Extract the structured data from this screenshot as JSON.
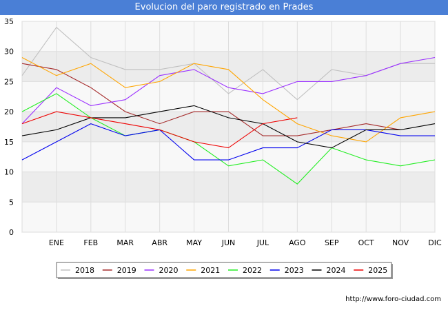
{
  "page": {
    "title": "Evolucion del paro registrado en Prades",
    "source": "http://www.foro-ciudad.com"
  },
  "chart_data": {
    "type": "line",
    "title": "Evolucion del paro registrado en Prades",
    "xlabel": "",
    "ylabel": "",
    "categories": [
      "",
      "ENE",
      "FEB",
      "MAR",
      "ABR",
      "MAY",
      "JUN",
      "JUL",
      "AGO",
      "SEP",
      "OCT",
      "NOV",
      "DIC"
    ],
    "yticks": [
      0,
      5,
      10,
      15,
      20,
      25,
      30,
      35
    ],
    "ylim": [
      0,
      35
    ],
    "grid": true,
    "legend_position": "bottom",
    "series": [
      {
        "name": "2018",
        "color": "#c0c0c0",
        "values": [
          26,
          34,
          29,
          27,
          27,
          28,
          23,
          27,
          22,
          27,
          26,
          28,
          28
        ]
      },
      {
        "name": "2019",
        "color": "#a52a2a",
        "values": [
          28,
          27,
          24,
          20,
          18,
          20,
          20,
          16,
          16,
          17,
          18,
          17,
          null
        ]
      },
      {
        "name": "2020",
        "color": "#9b30ff",
        "values": [
          18,
          24,
          21,
          22,
          26,
          27,
          24,
          23,
          25,
          25,
          26,
          28,
          29
        ]
      },
      {
        "name": "2021",
        "color": "#ffa500",
        "values": [
          29,
          26,
          28,
          24,
          25,
          28,
          27,
          22,
          18,
          16,
          15,
          19,
          20
        ]
      },
      {
        "name": "2022",
        "color": "#22ee22",
        "values": [
          20,
          23,
          19,
          16,
          17,
          15,
          11,
          12,
          8,
          14,
          12,
          11,
          12
        ]
      },
      {
        "name": "2023",
        "color": "#0000ee",
        "values": [
          12,
          15,
          18,
          16,
          17,
          12,
          12,
          14,
          14,
          17,
          17,
          16,
          16
        ]
      },
      {
        "name": "2024",
        "color": "#000000",
        "values": [
          16,
          17,
          19,
          19,
          20,
          21,
          19,
          18,
          15,
          14,
          17,
          17,
          18
        ]
      },
      {
        "name": "2025",
        "color": "#ee0000",
        "values": [
          18,
          20,
          19,
          18,
          17,
          15,
          14,
          18,
          19,
          null,
          null,
          null,
          null
        ]
      }
    ]
  }
}
